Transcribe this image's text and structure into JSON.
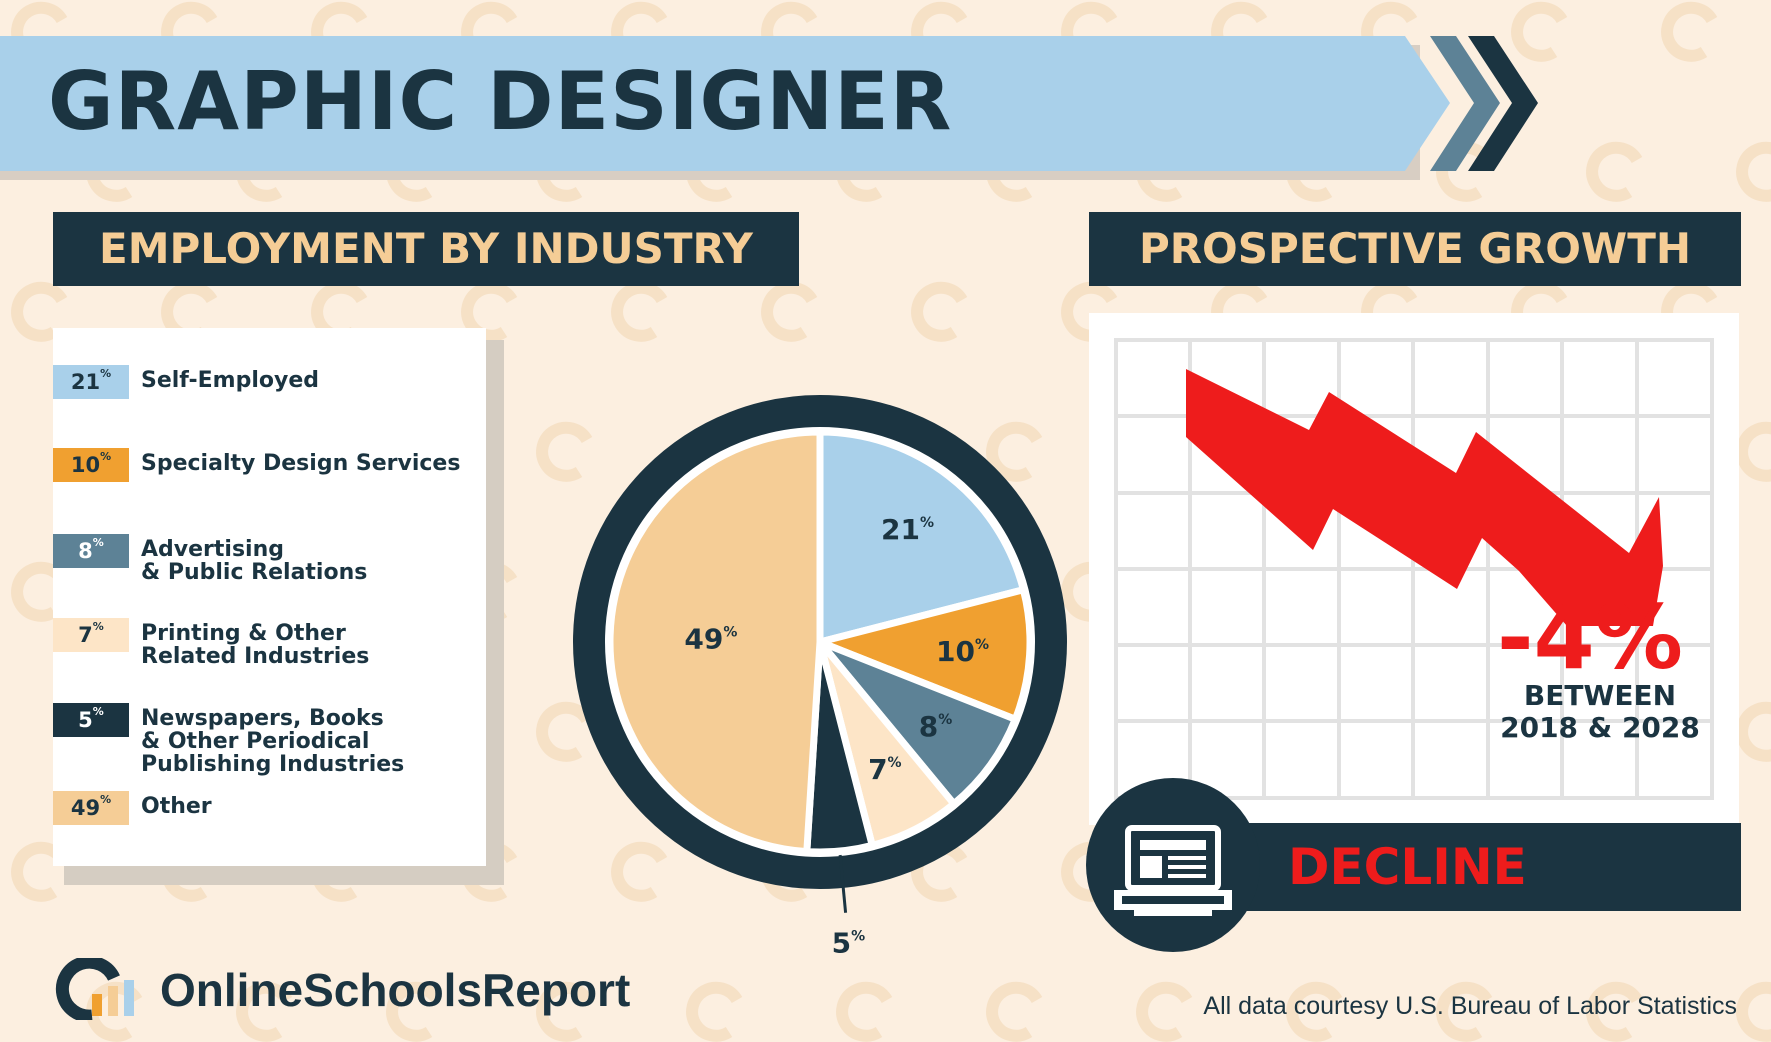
{
  "title": "GRAPHIC DESIGNER",
  "sections": {
    "employment_header": "EMPLOYMENT BY INDUSTRY",
    "growth_header": "PROSPECTIVE GROWTH"
  },
  "colors": {
    "self_employed": "#a9d0ea",
    "specialty_design": "#f0a030",
    "advertising": "#5d8296",
    "printing": "#fde5c7",
    "newspapers": "#1b3441",
    "other": "#f5cd96",
    "decline_red": "#ee1c1c",
    "navy": "#1b3441"
  },
  "legend": [
    {
      "value": "21",
      "unit": "%",
      "label": "Self-Employed"
    },
    {
      "value": "10",
      "unit": "%",
      "label": "Specialty Design Services"
    },
    {
      "value": "8",
      "unit": "%",
      "label": "Advertising\n& Public Relations"
    },
    {
      "value": "7",
      "unit": "%",
      "label": "Printing & Other\nRelated Industries"
    },
    {
      "value": "5",
      "unit": "%",
      "label": "Newspapers, Books\n& Other Periodical\nPublishing Industries"
    },
    {
      "value": "49",
      "unit": "%",
      "label": "Other"
    }
  ],
  "chart_data": {
    "type": "pie",
    "unit": "%",
    "slices": [
      {
        "label": "Self-Employed",
        "value": 21,
        "color": "#a9d0ea"
      },
      {
        "label": "Specialty Design Services",
        "value": 10,
        "color": "#f0a030"
      },
      {
        "label": "Advertising & Public Relations",
        "value": 8,
        "color": "#5d8296"
      },
      {
        "label": "Printing & Other Related Industries",
        "value": 7,
        "color": "#fde5c7"
      },
      {
        "label": "Newspapers, Books & Other Periodical Publishing Industries",
        "value": 5,
        "color": "#1b3441"
      },
      {
        "label": "Other",
        "value": 49,
        "color": "#f5cd96"
      }
    ]
  },
  "growth": {
    "percent": "-4%",
    "caption": "BETWEEN\n2018 & 2028",
    "status": "DECLINE",
    "icon": "laptop-icon",
    "trend_icon": "down-arrow-icon"
  },
  "footer": {
    "brand": "OnlineSchoolsReport",
    "source": "All data courtesy U.S. Bureau of Labor Statistics"
  }
}
